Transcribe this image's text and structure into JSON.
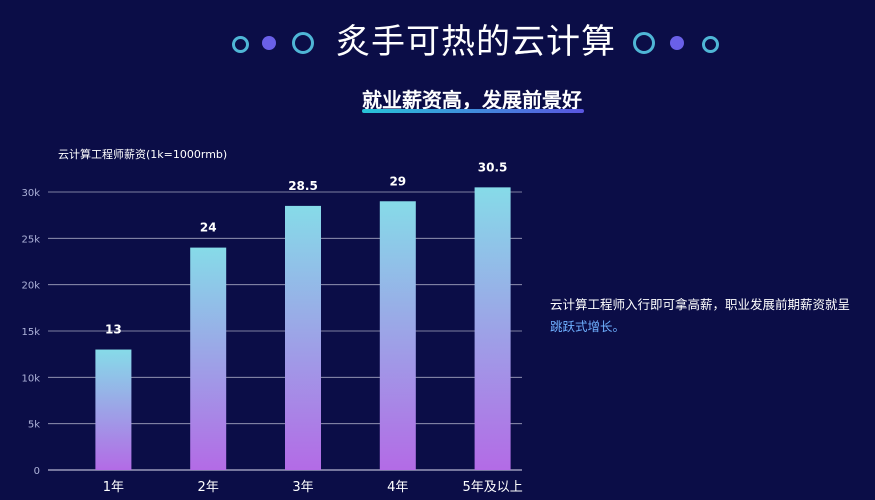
{
  "header": {
    "title": "炙手可热的云计算",
    "subtitle": "就业薪资高，发展前景好"
  },
  "side_text": {
    "part1": "云计算工程师入行即可拿高薪，职业发展前期薪资就呈",
    "part2": "跳跃式增长。"
  },
  "colors": {
    "background": "#0b0d47",
    "bar_top": "#86dbe8",
    "bar_bottom": "#b36be6",
    "accent_cyan": "#4fb6d6",
    "accent_purple": "#6a60e8",
    "highlight_text": "#6fb0ff"
  },
  "chart_data": {
    "type": "bar",
    "title": "云计算工程师薪资(1k=1000rmb)",
    "categories": [
      "1年",
      "2年",
      "3年",
      "4年",
      "5年及以上"
    ],
    "values": [
      13,
      24,
      28.5,
      29,
      30.5
    ],
    "value_labels": [
      "13",
      "24",
      "28.5",
      "29",
      "30.5"
    ],
    "ylim": [
      0,
      30
    ],
    "yticks": [
      0,
      5,
      10,
      15,
      20,
      25,
      30
    ],
    "ytick_labels": [
      "0",
      "5k",
      "10k",
      "15k",
      "20k",
      "25k",
      "30k"
    ],
    "grid": true
  }
}
